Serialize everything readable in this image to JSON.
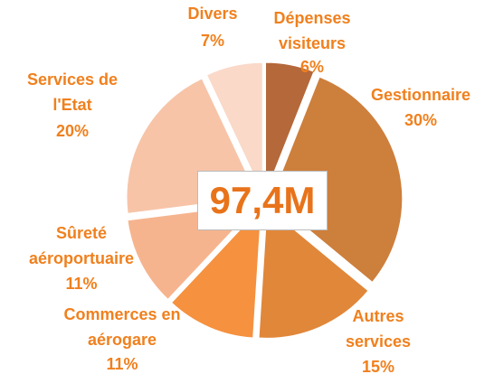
{
  "chart_data": {
    "type": "pie",
    "center_label": "97,4M",
    "categories": [
      "Dépenses visiteurs",
      "Gestionnaire",
      "Autres services",
      "Commerces en aérogare",
      "Sûreté aéroportuaire",
      "Services de l'Etat",
      "Divers"
    ],
    "values": [
      6,
      30,
      15,
      11,
      11,
      20,
      7
    ],
    "value_labels": [
      "6%",
      "30%",
      "15%",
      "11%",
      "11%",
      "20%",
      "7%"
    ],
    "colors": [
      "#b5683a",
      "#cd7f3c",
      "#e0873a",
      "#f5913f",
      "#f6b48e",
      "#f7c4a8",
      "#fad9c8"
    ]
  }
}
